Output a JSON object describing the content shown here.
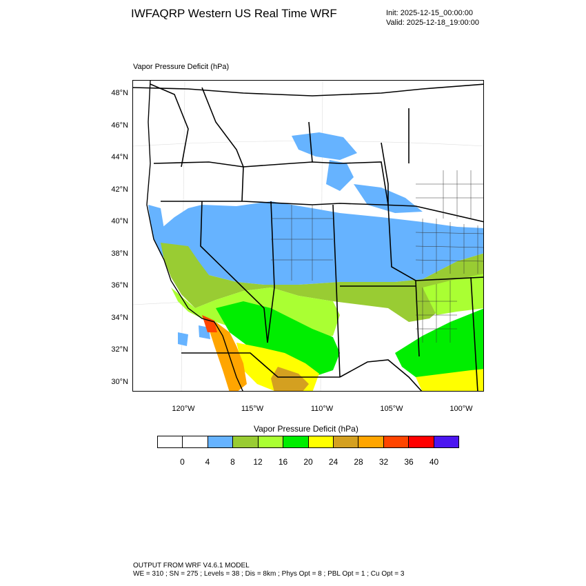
{
  "header": {
    "title": "IWFAQRP Western US Real Time WRF",
    "init": "Init: 2025-12-15_00:00:00",
    "valid": "Valid: 2025-12-18_19:00:00"
  },
  "map": {
    "field_label": "Vapor Pressure Deficit   (hPa)",
    "lat_labels": [
      "48°N",
      "46°N",
      "44°N",
      "42°N",
      "40°N",
      "38°N",
      "36°N",
      "34°N",
      "32°N",
      "30°N"
    ],
    "lon_labels": [
      "120°W",
      "115°W",
      "110°W",
      "105°W",
      "100°W"
    ]
  },
  "colorbar": {
    "title": "Vapor Pressure Deficit  (hPa)",
    "colors": [
      "#ffffff",
      "#ffffff",
      "#66b3ff",
      "#99cc33",
      "#aaff33",
      "#00ee00",
      "#ffff00",
      "#d4a020",
      "#ffa500",
      "#ff4500",
      "#ff0000",
      "#4b16f0"
    ],
    "tick_labels": [
      "0",
      "4",
      "8",
      "12",
      "16",
      "20",
      "24",
      "28",
      "32",
      "36",
      "40"
    ]
  },
  "footer": {
    "line1": "OUTPUT FROM WRF V4.6.1 MODEL",
    "line2": "WE = 310 ; SN = 275 ; Levels = 38 ; Dis = 8km ; Phys Opt = 8 ; PBL Opt = 1 ; Cu Opt = 3"
  }
}
